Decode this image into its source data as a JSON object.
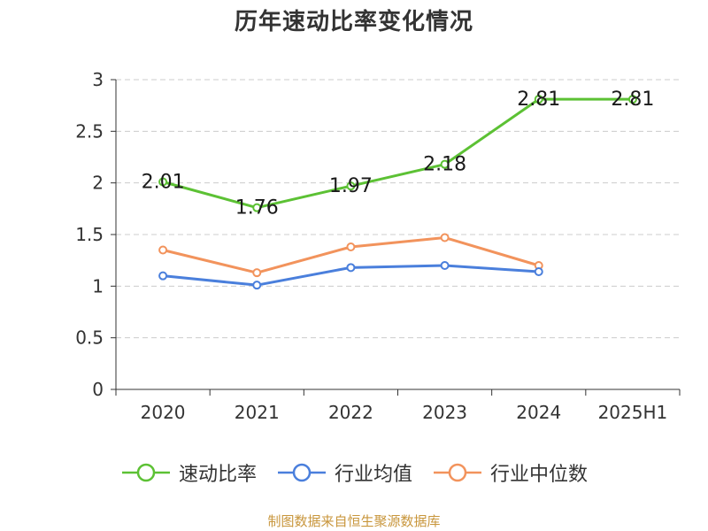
{
  "chart_data": {
    "type": "line",
    "title": "历年速动比率变化情况",
    "categories": [
      "2020",
      "2021",
      "2022",
      "2023",
      "2024",
      "2025H1"
    ],
    "series": [
      {
        "name": "速动比率",
        "color": "#5cc134",
        "values": [
          2.01,
          1.76,
          1.97,
          2.18,
          2.81,
          2.81
        ],
        "show_labels": true
      },
      {
        "name": "行业均值",
        "color": "#4a7fdc",
        "values": [
          1.1,
          1.01,
          1.18,
          1.2,
          1.14,
          null
        ],
        "show_labels": false
      },
      {
        "name": "行业中位数",
        "color": "#f2935c",
        "values": [
          1.35,
          1.13,
          1.38,
          1.47,
          1.2,
          null
        ],
        "show_labels": false
      }
    ],
    "y_ticks": [
      "0",
      "0.5",
      "1",
      "1.5",
      "2",
      "2.5",
      "3"
    ],
    "ylim": [
      0,
      3
    ],
    "grid": true,
    "legend_position": "bottom"
  },
  "source_text": "制图数据来自恒生聚源数据库"
}
